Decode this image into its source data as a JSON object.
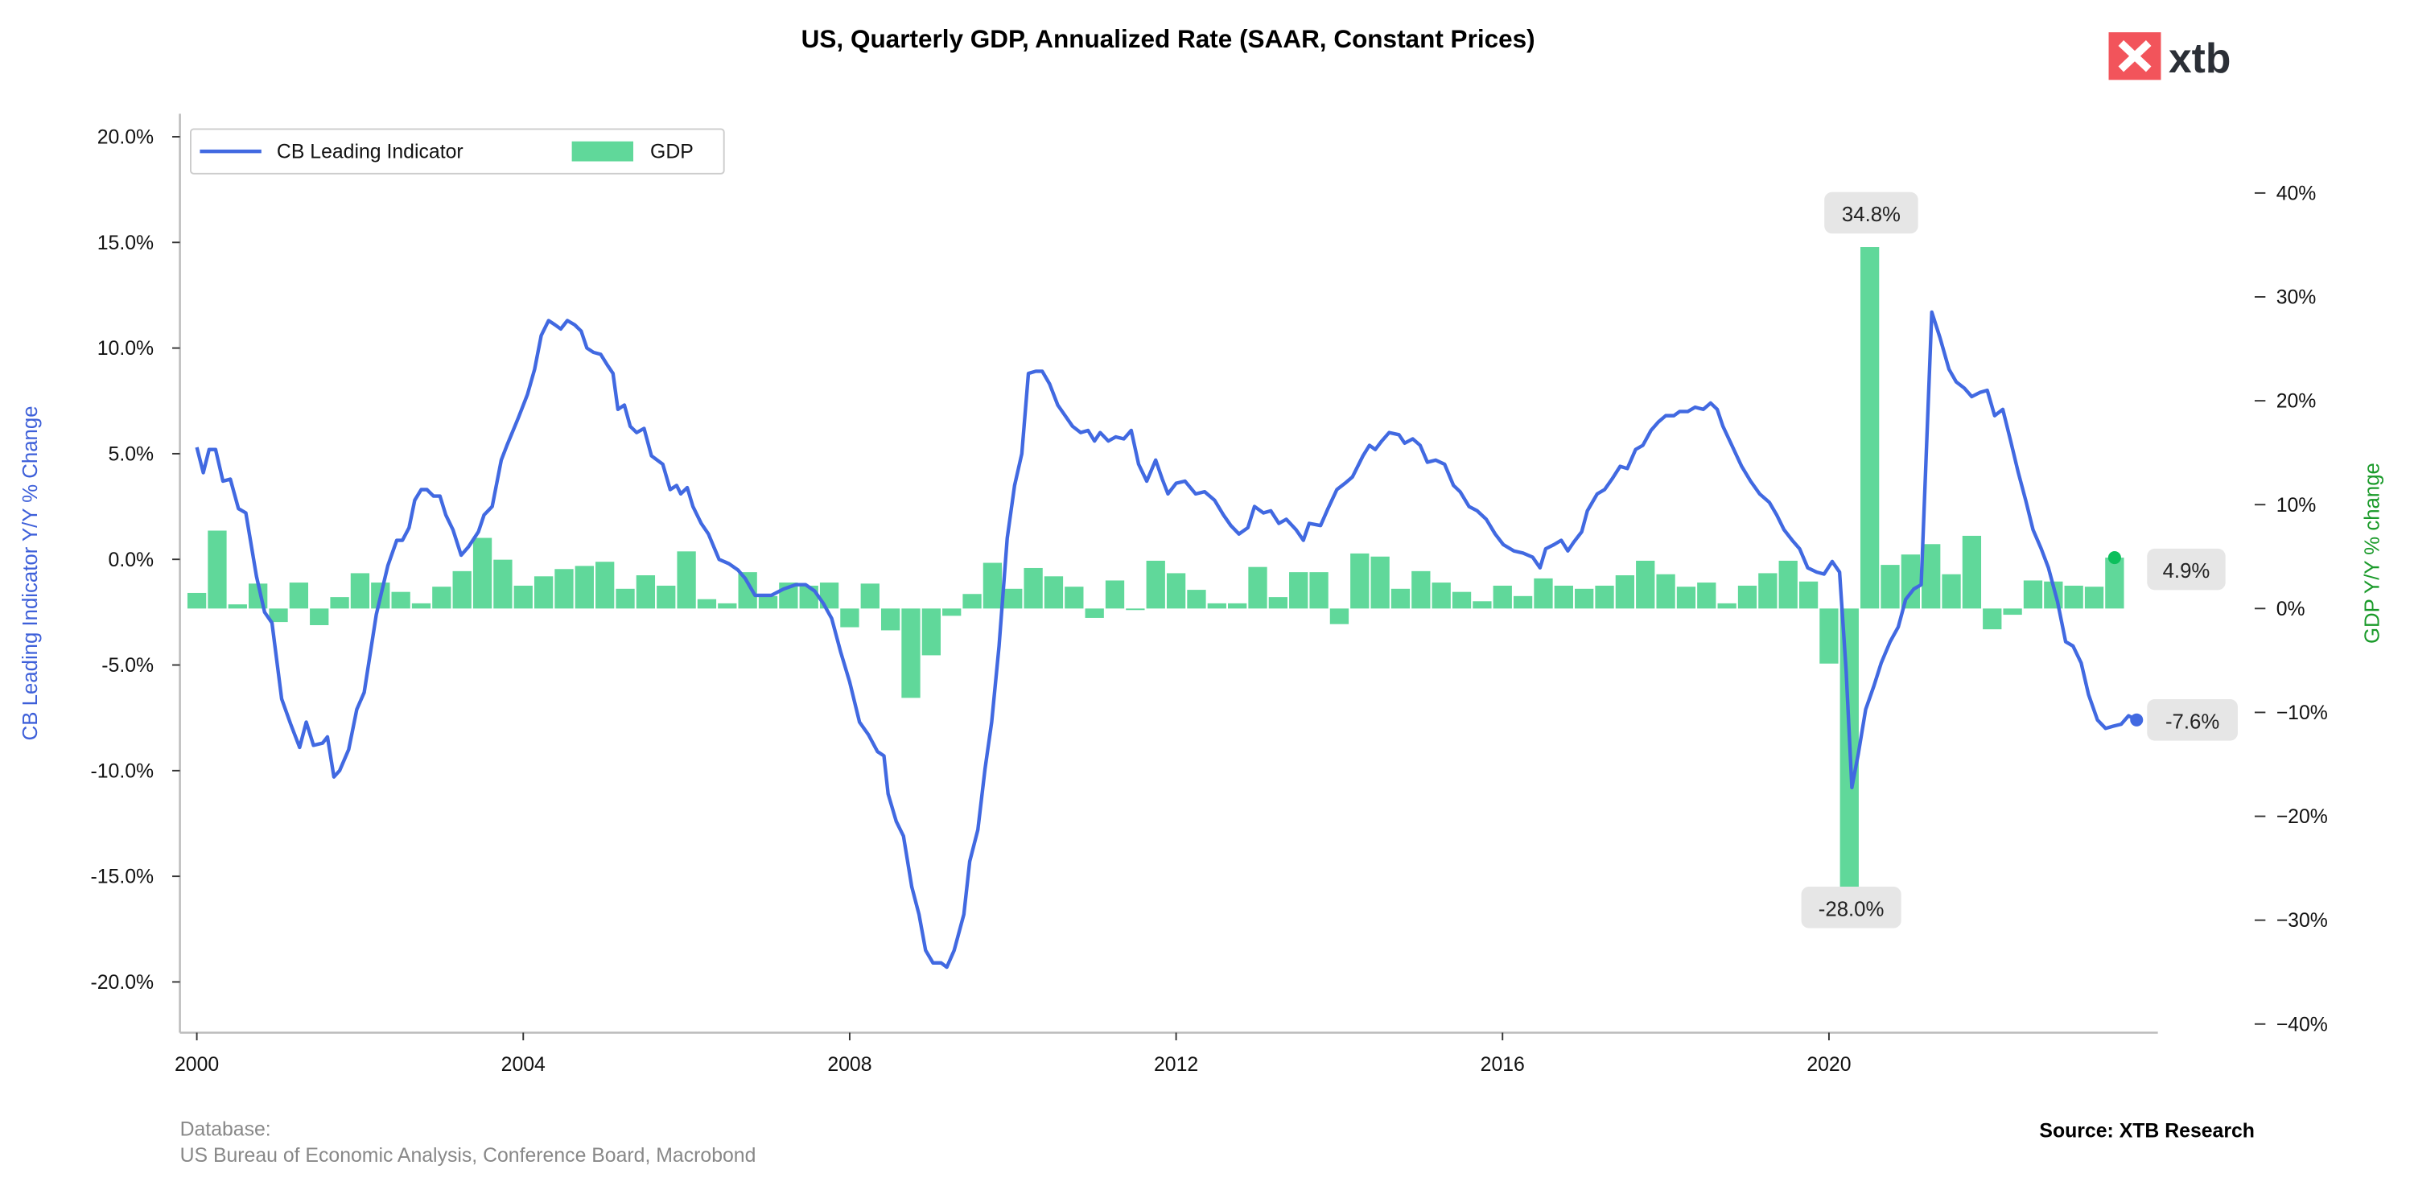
{
  "chart_data": {
    "type": "bar+line",
    "title": "US, Quarterly GDP, Annualized Rate (SAAR, Constant Prices)",
    "legend": {
      "placement": "top-left",
      "entries": [
        "CB Leading Indicator",
        "GDP"
      ]
    },
    "left_axis": {
      "label": "CB Leading Indicator Y/Y % Change",
      "range": [
        -22.5,
        21
      ],
      "ticks": [
        "20.0%",
        "15.0%",
        "10.0%",
        "5.0%",
        "0.0%",
        "-5.0%",
        "-10.0%",
        "-15.0%",
        "-20.0%"
      ],
      "tick_values": [
        20,
        15,
        10,
        5,
        0,
        -5,
        -10,
        -15,
        -20
      ],
      "color": "#3d5fd9"
    },
    "right_axis": {
      "label": "GDP Y/Y % change",
      "range": [
        -40.5,
        41
      ],
      "ticks": [
        "40%",
        "30%",
        "20%",
        "10%",
        "0%",
        "−10%",
        "−20%",
        "−30%",
        "−40%"
      ],
      "tick_values": [
        40,
        30,
        20,
        10,
        0,
        -10,
        -20,
        -30,
        -40
      ],
      "color": "#1a9a2a"
    },
    "x_axis": {
      "ticks": [
        "2000",
        "2004",
        "2008",
        "2012",
        "2016",
        "2020"
      ],
      "tick_values": [
        2000,
        2004,
        2008,
        2012,
        2016,
        2020
      ],
      "range": [
        1999.8,
        2024.0
      ]
    },
    "grid": false,
    "colors": {
      "line": "#4169e1",
      "bars": "#60d89a",
      "last_bar_dot": "#0cbf5c",
      "label_box": "#e6e6e6"
    },
    "gdp_series": {
      "name": "GDP",
      "start_quarter": "2000-Q1",
      "values": [
        1.5,
        7.5,
        0.4,
        2.4,
        -1.3,
        2.5,
        -1.6,
        1.1,
        3.4,
        2.5,
        1.6,
        0.5,
        2.1,
        3.6,
        6.8,
        4.7,
        2.2,
        3.1,
        3.8,
        4.1,
        4.5,
        1.9,
        3.2,
        2.2,
        5.5,
        0.9,
        0.5,
        3.5,
        1.2,
        2.5,
        2.2,
        2.5,
        -1.8,
        2.4,
        -2.1,
        -8.6,
        -4.5,
        -0.7,
        1.4,
        4.4,
        1.9,
        3.9,
        3.1,
        2.1,
        -0.9,
        2.7,
        -0.15,
        4.6,
        3.4,
        1.8,
        0.5,
        0.5,
        4.0,
        1.1,
        3.5,
        3.5,
        -1.5,
        5.3,
        5.0,
        1.9,
        3.6,
        2.5,
        1.6,
        0.7,
        2.2,
        1.2,
        2.9,
        2.2,
        1.9,
        2.2,
        3.2,
        4.6,
        3.3,
        2.1,
        2.5,
        0.5,
        2.2,
        3.4,
        4.6,
        2.6,
        -5.3,
        -28.0,
        34.8,
        4.2,
        5.2,
        6.2,
        3.3,
        7.0,
        -2.0,
        -0.6,
        2.7,
        2.6,
        2.2,
        2.1,
        4.9
      ]
    },
    "leading_indicator_series": {
      "name": "CB Leading Indicator",
      "points": [
        [
          2000.0,
          5.3
        ],
        [
          2000.08,
          4.1
        ],
        [
          2000.15,
          5.2
        ],
        [
          2000.23,
          5.2
        ],
        [
          2000.32,
          3.7
        ],
        [
          2000.41,
          3.8
        ],
        [
          2000.51,
          2.4
        ],
        [
          2000.6,
          2.2
        ],
        [
          2000.73,
          -0.8
        ],
        [
          2000.83,
          -2.5
        ],
        [
          2000.92,
          -3.0
        ],
        [
          2001.04,
          -6.6
        ],
        [
          2001.15,
          -7.8
        ],
        [
          2001.26,
          -8.9
        ],
        [
          2001.34,
          -7.7
        ],
        [
          2001.43,
          -8.8
        ],
        [
          2001.54,
          -8.7
        ],
        [
          2001.6,
          -8.4
        ],
        [
          2001.68,
          -10.3
        ],
        [
          2001.75,
          -10.0
        ],
        [
          2001.86,
          -9.0
        ],
        [
          2001.96,
          -7.1
        ],
        [
          2002.05,
          -6.3
        ],
        [
          2002.2,
          -2.6
        ],
        [
          2002.34,
          -0.3
        ],
        [
          2002.45,
          0.9
        ],
        [
          2002.52,
          0.9
        ],
        [
          2002.6,
          1.5
        ],
        [
          2002.67,
          2.8
        ],
        [
          2002.75,
          3.3
        ],
        [
          2002.82,
          3.3
        ],
        [
          2002.9,
          3.0
        ],
        [
          2002.98,
          3.0
        ],
        [
          2003.05,
          2.1
        ],
        [
          2003.14,
          1.4
        ],
        [
          2003.24,
          0.2
        ],
        [
          2003.33,
          0.6
        ],
        [
          2003.45,
          1.3
        ],
        [
          2003.52,
          2.1
        ],
        [
          2003.62,
          2.5
        ],
        [
          2003.73,
          4.7
        ],
        [
          2003.8,
          5.4
        ],
        [
          2003.94,
          6.7
        ],
        [
          2004.05,
          7.8
        ],
        [
          2004.14,
          9.0
        ],
        [
          2004.22,
          10.6
        ],
        [
          2004.31,
          11.3
        ],
        [
          2004.39,
          11.1
        ],
        [
          2004.46,
          10.9
        ],
        [
          2004.54,
          11.3
        ],
        [
          2004.63,
          11.1
        ],
        [
          2004.71,
          10.8
        ],
        [
          2004.78,
          10.0
        ],
        [
          2004.86,
          9.8
        ],
        [
          2004.95,
          9.7
        ],
        [
          2005.03,
          9.2
        ],
        [
          2005.1,
          8.8
        ],
        [
          2005.16,
          7.1
        ],
        [
          2005.24,
          7.3
        ],
        [
          2005.31,
          6.3
        ],
        [
          2005.39,
          6.0
        ],
        [
          2005.48,
          6.2
        ],
        [
          2005.57,
          4.9
        ],
        [
          2005.71,
          4.5
        ],
        [
          2005.8,
          3.3
        ],
        [
          2005.88,
          3.5
        ],
        [
          2005.93,
          3.1
        ],
        [
          2006.01,
          3.4
        ],
        [
          2006.08,
          2.5
        ],
        [
          2006.18,
          1.7
        ],
        [
          2006.27,
          1.2
        ],
        [
          2006.4,
          0.0
        ],
        [
          2006.52,
          -0.2
        ],
        [
          2006.63,
          -0.5
        ],
        [
          2006.72,
          -0.9
        ],
        [
          2006.84,
          -1.7
        ],
        [
          2006.93,
          -1.7
        ],
        [
          2007.04,
          -1.7
        ],
        [
          2007.19,
          -1.4
        ],
        [
          2007.34,
          -1.2
        ],
        [
          2007.46,
          -1.2
        ],
        [
          2007.57,
          -1.5
        ],
        [
          2007.68,
          -2.1
        ],
        [
          2007.78,
          -2.8
        ],
        [
          2007.89,
          -4.4
        ],
        [
          2008.0,
          -5.8
        ],
        [
          2008.12,
          -7.7
        ],
        [
          2008.23,
          -8.3
        ],
        [
          2008.34,
          -9.1
        ],
        [
          2008.42,
          -9.3
        ],
        [
          2008.47,
          -11.1
        ],
        [
          2008.57,
          -12.4
        ],
        [
          2008.66,
          -13.1
        ],
        [
          2008.76,
          -15.5
        ],
        [
          2008.85,
          -16.8
        ],
        [
          2008.93,
          -18.5
        ],
        [
          2009.02,
          -19.1
        ],
        [
          2009.12,
          -19.1
        ],
        [
          2009.19,
          -19.3
        ],
        [
          2009.28,
          -18.5
        ],
        [
          2009.4,
          -16.8
        ],
        [
          2009.47,
          -14.3
        ],
        [
          2009.57,
          -12.8
        ],
        [
          2009.66,
          -9.9
        ],
        [
          2009.74,
          -7.7
        ],
        [
          2009.83,
          -4.1
        ],
        [
          2009.93,
          1.0
        ],
        [
          2010.02,
          3.5
        ],
        [
          2010.11,
          5.0
        ],
        [
          2010.19,
          8.8
        ],
        [
          2010.28,
          8.9
        ],
        [
          2010.36,
          8.9
        ],
        [
          2010.45,
          8.3
        ],
        [
          2010.55,
          7.3
        ],
        [
          2010.64,
          6.8
        ],
        [
          2010.73,
          6.3
        ],
        [
          2010.83,
          6.0
        ],
        [
          2010.92,
          6.1
        ],
        [
          2011.0,
          5.6
        ],
        [
          2011.07,
          6.0
        ],
        [
          2011.17,
          5.6
        ],
        [
          2011.26,
          5.8
        ],
        [
          2011.36,
          5.7
        ],
        [
          2011.45,
          6.1
        ],
        [
          2011.54,
          4.5
        ],
        [
          2011.64,
          3.7
        ],
        [
          2011.75,
          4.7
        ],
        [
          2011.83,
          3.8
        ],
        [
          2011.9,
          3.1
        ],
        [
          2012.0,
          3.6
        ],
        [
          2012.11,
          3.7
        ],
        [
          2012.24,
          3.1
        ],
        [
          2012.35,
          3.2
        ],
        [
          2012.47,
          2.8
        ],
        [
          2012.58,
          2.1
        ],
        [
          2012.67,
          1.6
        ],
        [
          2012.77,
          1.2
        ],
        [
          2012.88,
          1.5
        ],
        [
          2012.96,
          2.5
        ],
        [
          2013.07,
          2.2
        ],
        [
          2013.16,
          2.3
        ],
        [
          2013.26,
          1.7
        ],
        [
          2013.35,
          1.9
        ],
        [
          2013.47,
          1.4
        ],
        [
          2013.56,
          0.9
        ],
        [
          2013.63,
          1.7
        ],
        [
          2013.77,
          1.6
        ],
        [
          2013.86,
          2.4
        ],
        [
          2013.97,
          3.3
        ],
        [
          2014.07,
          3.6
        ],
        [
          2014.16,
          3.9
        ],
        [
          2014.29,
          4.9
        ],
        [
          2014.37,
          5.4
        ],
        [
          2014.44,
          5.2
        ],
        [
          2014.52,
          5.6
        ],
        [
          2014.61,
          6.0
        ],
        [
          2014.73,
          5.9
        ],
        [
          2014.8,
          5.5
        ],
        [
          2014.9,
          5.7
        ],
        [
          2014.99,
          5.4
        ],
        [
          2015.08,
          4.6
        ],
        [
          2015.18,
          4.7
        ],
        [
          2015.29,
          4.5
        ],
        [
          2015.4,
          3.5
        ],
        [
          2015.48,
          3.2
        ],
        [
          2015.59,
          2.5
        ],
        [
          2015.69,
          2.3
        ],
        [
          2015.8,
          1.9
        ],
        [
          2015.91,
          1.2
        ],
        [
          2016.01,
          0.7
        ],
        [
          2016.14,
          0.4
        ],
        [
          2016.25,
          0.3
        ],
        [
          2016.37,
          0.1
        ],
        [
          2016.46,
          -0.4
        ],
        [
          2016.53,
          0.5
        ],
        [
          2016.63,
          0.7
        ],
        [
          2016.72,
          0.9
        ],
        [
          2016.8,
          0.4
        ],
        [
          2016.87,
          0.8
        ],
        [
          2016.97,
          1.3
        ],
        [
          2017.04,
          2.3
        ],
        [
          2017.16,
          3.1
        ],
        [
          2017.25,
          3.3
        ],
        [
          2017.34,
          3.8
        ],
        [
          2017.44,
          4.4
        ],
        [
          2017.53,
          4.3
        ],
        [
          2017.63,
          5.2
        ],
        [
          2017.72,
          5.4
        ],
        [
          2017.82,
          6.1
        ],
        [
          2017.91,
          6.5
        ],
        [
          2018.0,
          6.8
        ],
        [
          2018.1,
          6.8
        ],
        [
          2018.17,
          7.0
        ],
        [
          2018.27,
          7.0
        ],
        [
          2018.36,
          7.2
        ],
        [
          2018.46,
          7.1
        ],
        [
          2018.55,
          7.4
        ],
        [
          2018.63,
          7.1
        ],
        [
          2018.7,
          6.3
        ],
        [
          2018.81,
          5.4
        ],
        [
          2018.93,
          4.4
        ],
        [
          2019.04,
          3.7
        ],
        [
          2019.15,
          3.1
        ],
        [
          2019.27,
          2.7
        ],
        [
          2019.36,
          2.1
        ],
        [
          2019.45,
          1.4
        ],
        [
          2019.55,
          0.9
        ],
        [
          2019.64,
          0.5
        ],
        [
          2019.74,
          -0.4
        ],
        [
          2019.85,
          -0.6
        ],
        [
          2019.94,
          -0.7
        ],
        [
          2020.04,
          -0.1
        ],
        [
          2020.13,
          -0.6
        ],
        [
          2020.21,
          -5.3
        ],
        [
          2020.28,
          -10.8
        ],
        [
          2020.36,
          -9.2
        ],
        [
          2020.45,
          -7.1
        ],
        [
          2020.55,
          -6.0
        ],
        [
          2020.64,
          -4.9
        ],
        [
          2020.75,
          -3.9
        ],
        [
          2020.85,
          -3.2
        ],
        [
          2020.94,
          -1.9
        ],
        [
          2021.04,
          -1.4
        ],
        [
          2021.13,
          -1.2
        ],
        [
          2021.26,
          11.7
        ],
        [
          2021.36,
          10.5
        ],
        [
          2021.47,
          9.0
        ],
        [
          2021.56,
          8.4
        ],
        [
          2021.66,
          8.1
        ],
        [
          2021.75,
          7.7
        ],
        [
          2021.85,
          7.9
        ],
        [
          2021.94,
          8.0
        ],
        [
          2022.03,
          6.8
        ],
        [
          2022.13,
          7.1
        ],
        [
          2022.22,
          5.7
        ],
        [
          2022.32,
          4.1
        ],
        [
          2022.41,
          2.8
        ],
        [
          2022.5,
          1.4
        ],
        [
          2022.6,
          0.5
        ],
        [
          2022.69,
          -0.4
        ],
        [
          2022.8,
          -2.0
        ],
        [
          2022.9,
          -3.9
        ],
        [
          2022.99,
          -4.1
        ],
        [
          2023.09,
          -4.9
        ],
        [
          2023.18,
          -6.4
        ],
        [
          2023.29,
          -7.6
        ],
        [
          2023.39,
          -8.0
        ],
        [
          2023.48,
          -7.9
        ],
        [
          2023.58,
          -7.8
        ],
        [
          2023.67,
          -7.4
        ],
        [
          2023.77,
          -7.6
        ]
      ]
    },
    "annotations": {
      "gdp_max": "34.8%",
      "gdp_min": "-28.0%",
      "gdp_last": "4.9%",
      "indicator_last": "-7.6%"
    }
  },
  "branding": {
    "logo_text": "xtb"
  },
  "footer": {
    "database_label": "Database:",
    "database_sources": "US Bureau of Economic Analysis, Conference Board, Macrobond",
    "source": "Source: XTB Research"
  }
}
